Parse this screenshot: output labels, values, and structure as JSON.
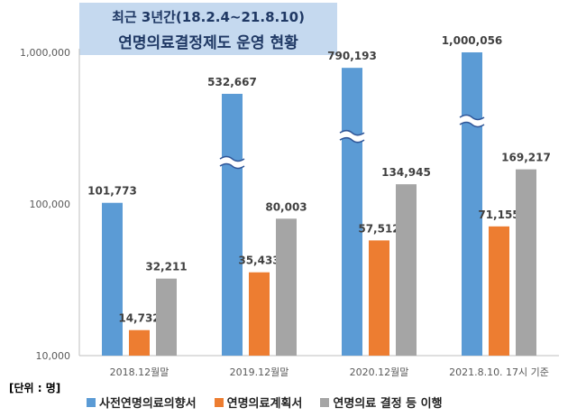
{
  "title": {
    "line1": "최근 3년간(18.2.4~21.8.10)",
    "line2": "연명의료결정제도 운영 현황"
  },
  "unit_note": "[단위 : 명]",
  "colors": {
    "advance_directive": "#5b9bd5",
    "care_plan": "#ed7d31",
    "decision_implemented": "#a5a5a5"
  },
  "chart_data": {
    "type": "bar",
    "yscale": "log",
    "ylim": [
      10000,
      1000000
    ],
    "yticks": [
      {
        "value": 10000,
        "label": "10,000"
      },
      {
        "value": 100000,
        "label": "100,000"
      },
      {
        "value": 1000000,
        "label": "1,000,000"
      }
    ],
    "categories": [
      "2018.12월말",
      "2019.12월말",
      "2020.12월말",
      "2021.8.10. 17시 기준"
    ],
    "series": [
      {
        "name": "사전연명의료의향서",
        "color": "#5b9bd5",
        "values": [
          101773,
          532667,
          790193,
          1000056
        ],
        "labels": [
          "101,773",
          "532,667",
          "790,193",
          "1,000,056"
        ],
        "axis_break": [
          false,
          true,
          true,
          true
        ]
      },
      {
        "name": "연명의료계획서",
        "color": "#ed7d31",
        "values": [
          14732,
          35433,
          57512,
          71155
        ],
        "labels": [
          "14,732",
          "35,433",
          "57,512",
          "71,155"
        ]
      },
      {
        "name": "연명의료 결정 등 이행",
        "color": "#a5a5a5",
        "values": [
          32211,
          80003,
          134945,
          169217
        ],
        "labels": [
          "32,211",
          "80,003",
          "134,945",
          "169,217"
        ]
      }
    ],
    "grid": false,
    "legend": "bottom"
  }
}
